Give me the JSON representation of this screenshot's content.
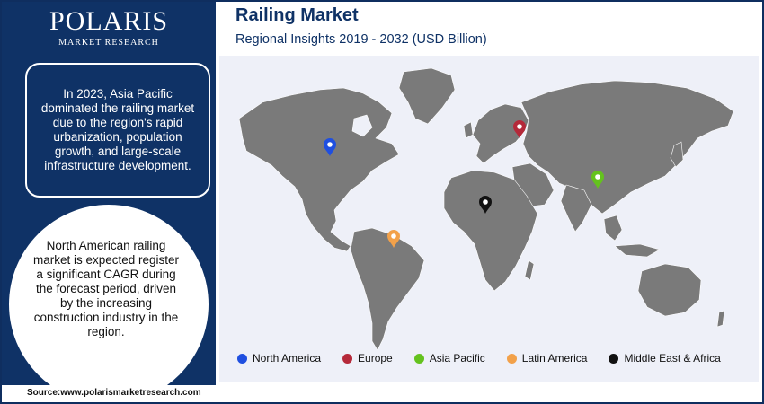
{
  "brand": {
    "name": "POLARIS",
    "tagline": "MARKET RESEARCH"
  },
  "header": {
    "title": "Railing Market",
    "subtitle": "Regional Insights 2019 - 2032 (USD Billion)"
  },
  "sidebar": {
    "box_text": "In 2023, Asia Pacific dominated the railing market due to the region's rapid urbanization, population growth, and large-scale infrastructure development.",
    "circle_text": "North American railing market is expected register a significant CAGR during the forecast period, driven by the increasing construction industry in the region."
  },
  "source": "Source:www.polarismarketresearch.com",
  "colors": {
    "navy": "#0f3266",
    "map_land": "#7a7a7a",
    "map_background": "#eef0f8"
  },
  "chart_data": {
    "type": "map",
    "title": "Railing Market",
    "subtitle": "Regional Insights 2019 - 2032 (USD Billion)",
    "legend_placement": "bottom",
    "series": [
      {
        "name": "North America",
        "color": "#1f4fe0",
        "marker": "pin-icon"
      },
      {
        "name": "Europe",
        "color": "#b5293a",
        "marker": "pin-icon"
      },
      {
        "name": "Asia Pacific",
        "color": "#64c21e",
        "marker": "pin-icon"
      },
      {
        "name": "Latin America",
        "color": "#f2a14a",
        "marker": "pin-icon"
      },
      {
        "name": "Middle East & Africa",
        "color": "#111111",
        "marker": "pin-icon"
      }
    ]
  }
}
